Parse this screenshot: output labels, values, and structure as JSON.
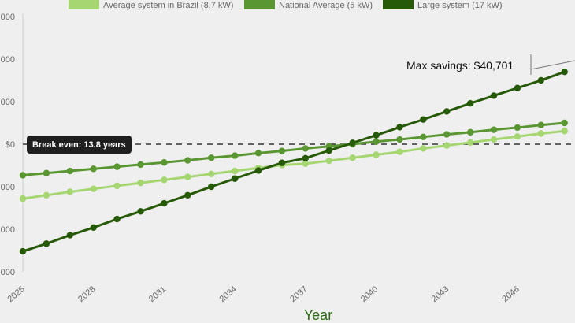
{
  "chart_data": {
    "type": "line",
    "title": "",
    "xlabel": "Year",
    "ylabel": "",
    "x": [
      2025,
      2026,
      2027,
      2028,
      2029,
      2030,
      2031,
      2032,
      2033,
      2034,
      2035,
      2036,
      2037,
      2038,
      2039,
      2040,
      2041,
      2042,
      2043,
      2044,
      2045,
      2046,
      2047,
      2048
    ],
    "xticks": [
      "2025",
      "2028",
      "2031",
      "2034",
      "2037",
      "2040",
      "2043",
      "2046"
    ],
    "yticks": [
      {
        "value": 30000,
        "label": "000"
      },
      {
        "value": 20000,
        "label": "000"
      },
      {
        "value": 10000,
        "label": "000"
      },
      {
        "value": 0,
        "label": "$0"
      },
      {
        "value": -10000,
        "label": "000"
      },
      {
        "value": -20000,
        "label": "000"
      },
      {
        "value": -30000,
        "label": "000"
      }
    ],
    "ylim": [
      -30000,
      30000
    ],
    "grid": false,
    "legend": "top",
    "series": [
      {
        "name": "Average system in Brazil (8.7 kW)",
        "color": "#a6d672",
        "values": [
          -12800,
          -12000,
          -11200,
          -10500,
          -9800,
          -9100,
          -8400,
          -7700,
          -7000,
          -6300,
          -5600,
          -4900,
          -4600,
          -3900,
          -3200,
          -2500,
          -1800,
          -1000,
          -300,
          400,
          1100,
          1800,
          2500,
          3100
        ]
      },
      {
        "name": "National Average (5 kW)",
        "color": "#5a9632",
        "values": [
          -7300,
          -6800,
          -6300,
          -5800,
          -5300,
          -4800,
          -4300,
          -3800,
          -3200,
          -2700,
          -2100,
          -1600,
          -1000,
          -500,
          0,
          600,
          1100,
          1700,
          2300,
          2800,
          3400,
          3900,
          4500,
          5000
        ]
      },
      {
        "name": "Large system (17  kW)",
        "color": "#275a08",
        "values": [
          -25200,
          -23400,
          -21400,
          -19600,
          -17600,
          -15800,
          -13900,
          -12000,
          -10000,
          -8100,
          -6200,
          -4400,
          -3300,
          -1500,
          300,
          2100,
          4000,
          5800,
          7700,
          9600,
          11400,
          13200,
          15000,
          17000
        ]
      }
    ],
    "annotations": {
      "break_even": "Break even: 13.8 years",
      "max_savings": "Max savings: $40,701"
    }
  }
}
